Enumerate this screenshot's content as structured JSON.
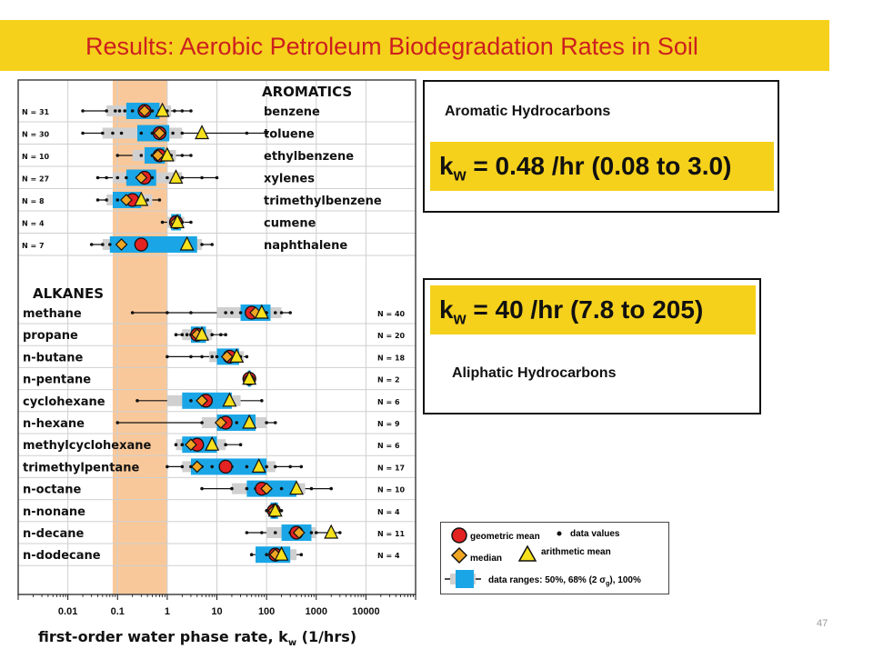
{
  "slide": {
    "title": "Results: Aerobic Petroleum Biodegradation Rates in Soil",
    "page_number": "47",
    "colors": {
      "title_bar": "#f5d11c",
      "title_text": "#cc1f1f",
      "kband": "#f5d11c",
      "box_50": "#1aa6e6",
      "box_68": "#d0d0d0",
      "shade": "#f9c89a",
      "mean_marker": "#e32222",
      "median_marker": "#f0a623",
      "arith_marker": "#f5e11c"
    }
  },
  "aromatic_box": {
    "heading": "Aromatic Hydrocarbons",
    "k_prefix": "k",
    "k_sub": "w",
    "k_rest": " = 0.48 /hr (0.08 to 3.0)"
  },
  "aliphatic_box": {
    "heading": "Aliphatic Hydrocarbons",
    "k_prefix": "k",
    "k_sub": "w",
    "k_rest": " = 40 /hr (7.8 to 205)"
  },
  "legend": {
    "geo_mean": "geometric mean",
    "data_values": "data values",
    "median": "median",
    "arith_mean": "arithmetic mean",
    "ranges_prefix": "data ranges: 50%, 68% (2 ",
    "ranges_sigma": "σ",
    "ranges_sub": "g",
    "ranges_suffix": "), 100%"
  },
  "chart_data": {
    "type": "box-range",
    "x_scale": "log",
    "xlim": [
      0.001,
      100000
    ],
    "xticks": [
      "0.01",
      "0.1",
      "1",
      "10",
      "100",
      "1000",
      "10000"
    ],
    "xlabel_prefix": "first-order water phase rate, k",
    "xlabel_sub": "w",
    "xlabel_suffix": " (1/hrs)",
    "shaded_range": [
      0.08,
      1.0
    ],
    "groups": [
      {
        "name": "AROMATICS",
        "items": [
          {
            "label": "benzene",
            "n": "N = 31",
            "r100": [
              0.02,
              3
            ],
            "r68": [
              0.06,
              1.2
            ],
            "r50": [
              0.15,
              0.7
            ],
            "geo": 0.35,
            "median": 0.35,
            "arith": 0.8,
            "points": [
              0.02,
              0.06,
              0.09,
              0.11,
              0.14,
              0.2,
              0.3,
              0.5,
              0.7,
              1,
              1.4,
              2,
              3
            ]
          },
          {
            "label": "toluene",
            "n": "N = 30",
            "r100": [
              0.02,
              100
            ],
            "r68": [
              0.05,
              2
            ],
            "r50": [
              0.25,
              1.1
            ],
            "geo": 0.7,
            "median": 0.7,
            "arith": 5,
            "points": [
              0.02,
              0.05,
              0.08,
              0.12,
              0.3,
              0.5,
              0.9,
              1.3,
              2,
              40,
              100
            ]
          },
          {
            "label": "ethylbenzene",
            "n": "N = 10",
            "r100": [
              0.1,
              3
            ],
            "r68": [
              0.2,
              1.5
            ],
            "r50": [
              0.35,
              0.9
            ],
            "geo": 0.7,
            "median": 0.65,
            "arith": 1.0,
            "points": [
              0.1,
              0.3,
              0.5,
              0.8,
              1.2,
              2,
              3
            ]
          },
          {
            "label": "xylenes",
            "n": "N = 27",
            "r100": [
              0.04,
              10
            ],
            "r68": [
              0.08,
              2
            ],
            "r50": [
              0.15,
              0.6
            ],
            "geo": 0.35,
            "median": 0.3,
            "arith": 1.5,
            "points": [
              0.04,
              0.06,
              0.1,
              0.15,
              0.25,
              0.5,
              1,
              2,
              5,
              10
            ]
          },
          {
            "label": "trimethylbenzene",
            "n": "N = 8",
            "r100": [
              0.04,
              0.7
            ],
            "r68": [
              0.06,
              0.5
            ],
            "r50": [
              0.08,
              0.3
            ],
            "geo": 0.2,
            "median": 0.15,
            "arith": 0.3,
            "points": [
              0.04,
              0.06,
              0.1,
              0.2,
              0.3,
              0.4,
              0.7
            ]
          },
          {
            "label": "cumene",
            "n": "N = 4",
            "r100": [
              0.8,
              3
            ],
            "r68": [
              1,
              2.2
            ],
            "r50": [
              1.2,
              1.9
            ],
            "geo": 1.5,
            "median": 1.5,
            "arith": 1.6,
            "points": [
              0.8,
              1.2,
              2,
              3
            ]
          },
          {
            "label": "naphthalene",
            "n": "N = 7",
            "r100": [
              0.03,
              8
            ],
            "r68": [
              0.05,
              5
            ],
            "r50": [
              0.07,
              4
            ],
            "geo": 0.3,
            "median": 0.12,
            "arith": 2.5,
            "points": [
              0.03,
              0.05,
              0.07,
              5,
              8
            ]
          }
        ]
      },
      {
        "name": "ALKANES",
        "items": [
          {
            "label": "methane",
            "n": "N = 40",
            "r100": [
              0.2,
              300
            ],
            "r68": [
              10,
              200
            ],
            "r50": [
              30,
              120
            ],
            "geo": 50,
            "median": 60,
            "arith": 80,
            "points": [
              0.2,
              1,
              3,
              15,
              20,
              30,
              40,
              60,
              100,
              150,
              200,
              300
            ]
          },
          {
            "label": "propane",
            "n": "N = 20",
            "r100": [
              1.5,
              15
            ],
            "r68": [
              2,
              8
            ],
            "r50": [
              3,
              6
            ],
            "geo": 4,
            "median": 4,
            "arith": 5,
            "points": [
              1.5,
              2,
              2.5,
              3,
              4,
              5,
              8,
              12,
              15
            ]
          },
          {
            "label": "n-butane",
            "n": "N = 18",
            "r100": [
              1,
              40
            ],
            "r68": [
              7,
              35
            ],
            "r50": [
              10,
              28
            ],
            "geo": 18,
            "median": 16,
            "arith": 25,
            "points": [
              1,
              3,
              5,
              8,
              10,
              15,
              20,
              25,
              30,
              40
            ]
          },
          {
            "label": "n-pentane",
            "n": "N = 2",
            "r100": [
              40,
              50
            ],
            "r68": [
              40,
              50
            ],
            "r50": [
              42,
              48
            ],
            "geo": 45,
            "median": 45,
            "arith": 45,
            "points": [
              40,
              50
            ]
          },
          {
            "label": "cyclohexane",
            "n": "N = 6",
            "r100": [
              0.25,
              80
            ],
            "r68": [
              1,
              30
            ],
            "r50": [
              2,
              20
            ],
            "geo": 6,
            "median": 5,
            "arith": 18,
            "points": [
              0.25,
              3,
              6,
              20,
              80
            ]
          },
          {
            "label": "n-hexane",
            "n": "N = 9",
            "r100": [
              0.1,
              150
            ],
            "r68": [
              5,
              100
            ],
            "r50": [
              10,
              60
            ],
            "geo": 15,
            "median": 12,
            "arith": 45,
            "points": [
              0.1,
              5,
              10,
              15,
              25,
              50,
              100,
              150
            ]
          },
          {
            "label": "methylcyclohexane",
            "n": "N = 6",
            "r100": [
              1.5,
              30
            ],
            "r68": [
              1.5,
              15
            ],
            "r50": [
              2,
              10
            ],
            "geo": 4,
            "median": 3,
            "arith": 8,
            "points": [
              1.5,
              2,
              3,
              15,
              30
            ]
          },
          {
            "label": "trimethylpentane",
            "n": "N = 17",
            "r100": [
              1,
              500
            ],
            "r68": [
              2,
              150
            ],
            "r50": [
              3,
              100
            ],
            "geo": 15,
            "median": 4,
            "arith": 70,
            "points": [
              1,
              2,
              3,
              5,
              8,
              12,
              20,
              40,
              70,
              100,
              150,
              300,
              500
            ]
          },
          {
            "label": "n-octane",
            "n": "N = 10",
            "r100": [
              5,
              2000
            ],
            "r68": [
              20,
              600
            ],
            "r50": [
              40,
              400
            ],
            "geo": 80,
            "median": 100,
            "arith": 400,
            "points": [
              5,
              20,
              40,
              60,
              100,
              200,
              400,
              800,
              2000
            ]
          },
          {
            "label": "n-nonane",
            "n": "N = 4",
            "r100": [
              100,
              200
            ],
            "r68": [
              110,
              180
            ],
            "r50": [
              120,
              170
            ],
            "geo": 140,
            "median": 140,
            "arith": 150,
            "points": [
              100,
              130,
              160,
              200
            ]
          },
          {
            "label": "n-decane",
            "n": "N = 11",
            "r100": [
              40,
              3000
            ],
            "r68": [
              100,
              1000
            ],
            "r50": [
              200,
              800
            ],
            "geo": 400,
            "median": 450,
            "arith": 2000,
            "points": [
              40,
              80,
              150,
              300,
              500,
              800,
              1000,
              3000
            ]
          },
          {
            "label": "n-dodecane",
            "n": "N = 4",
            "r100": [
              50,
              500
            ],
            "r68": [
              60,
              400
            ],
            "r50": [
              60,
              300
            ],
            "geo": 150,
            "median": 150,
            "arith": 200,
            "points": [
              50,
              100,
              200,
              500
            ]
          }
        ]
      }
    ]
  }
}
